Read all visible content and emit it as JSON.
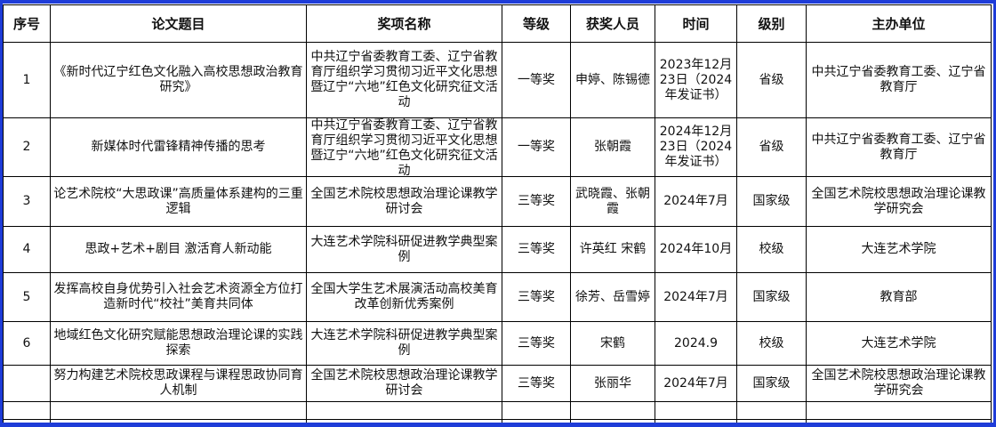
{
  "headers": [
    "序号",
    "论文题目",
    "奖项名称",
    "等级",
    "获奖人员",
    "时间",
    "级别",
    "主办单位"
  ],
  "rows": [
    {
      "no": "1",
      "title": "《新时代辽宁红色文化融入高校思想政治教育研究》",
      "award": "中共辽宁省委教育工委、辽宁省教育厅组织学习贯彻习近平文化思想暨辽宁“六地”红色文化研究征文活动",
      "grade": "一等奖",
      "people": "申婷、陈锡德",
      "time": "2023年12月23日（2024年发证书）",
      "level": "省级",
      "organizer": "中共辽宁省委教育工委、辽宁省教育厅"
    },
    {
      "no": "2",
      "title": "新媒体时代雷锋精神传播的思考",
      "award": "中共辽宁省委教育工委、辽宁省教育厅组织学习贯彻习近平文化思想暨辽宁“六地”红色文化研究征文活动",
      "grade": "一等奖",
      "people": "张朝霞",
      "time": "2024年12月23日（2024年发证书）",
      "level": "省级",
      "organizer": "中共辽宁省委教育工委、辽宁省教育厅"
    },
    {
      "no": "3",
      "title": "论艺术院校“大思政课”高质量体系建构的三重逻辑",
      "award": "全国艺术院校思想政治理论课教学研讨会",
      "grade": "三等奖",
      "people": "武晓霞、张朝霞",
      "time": "2024年7月",
      "level": "国家级",
      "organizer": "全国艺术院校思想政治理论课教学研究会"
    },
    {
      "no": "4",
      "title": "思政+艺术+剧目  激活育人新动能",
      "award": "大连艺术学院科研促进教学典型案例",
      "grade": "三等奖",
      "people": "许英红 宋鹤",
      "time": "2024年10月",
      "level": "校级",
      "organizer": "大连艺术学院"
    },
    {
      "no": "5",
      "title": "发挥高校自身优势引入社会艺术资源全方位打造新时代“校社”美育共同体",
      "award": "全国大学生艺术展演活动高校美育改革创新优秀案例",
      "grade": "三等奖",
      "people": "徐芳、岳雪婷",
      "time": "2024年7月",
      "level": "国家级",
      "organizer": "教育部"
    },
    {
      "no": "6",
      "title": "地域红色文化研究赋能思想政治理论课的实践探索",
      "award": "大连艺术学院科研促进教学典型案例",
      "grade": "三等奖",
      "people": "宋鹤",
      "time": "2024.9",
      "level": "校级",
      "organizer": "大连艺术学院"
    },
    {
      "no": "",
      "title": "努力构建艺术院校思政课程与课程思政协同育人机制",
      "award": "全国艺术院校思想政治理论课教学研讨会",
      "grade": "三等奖",
      "people": "张丽华",
      "time": "2024年7月",
      "level": "国家级",
      "organizer": "全国艺术院校思想政治理论课教学研究会"
    }
  ]
}
